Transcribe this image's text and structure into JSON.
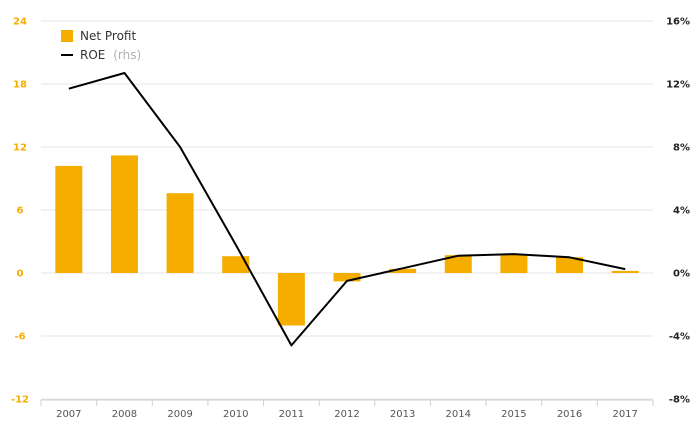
{
  "chart_data": {
    "type": "bar",
    "categories": [
      "2007",
      "2008",
      "2009",
      "2010",
      "2011",
      "2012",
      "2013",
      "2014",
      "2015",
      "2016",
      "2017"
    ],
    "series": [
      {
        "name": "Net Profit",
        "kind": "bar",
        "axis": "left",
        "values": [
          10.2,
          11.2,
          7.6,
          1.6,
          -5.0,
          -0.8,
          0.4,
          1.7,
          1.8,
          1.5,
          0.2
        ]
      },
      {
        "name": "ROE",
        "name_suffix": "(rhs)",
        "kind": "line",
        "axis": "right",
        "values": [
          11.7,
          12.7,
          8.0,
          1.8,
          -4.6,
          -0.5,
          0.3,
          1.1,
          1.2,
          1.0,
          0.25
        ]
      }
    ],
    "y_left": {
      "ylim": [
        -12,
        24
      ],
      "ticks": [
        "24",
        "18",
        "12",
        "6",
        "0",
        "-6",
        "-12"
      ]
    },
    "y_right": {
      "ylim": [
        -8,
        16
      ],
      "ticks": [
        "16%",
        "12%",
        "8%",
        "4%",
        "0%",
        "-4%",
        "-8%"
      ]
    },
    "grid": true,
    "legend_position": "top-left",
    "colors": {
      "bar": "#f5ad00",
      "line": "#000000",
      "left_ticks": "#f5ad00",
      "right_ticks": "#222222",
      "grid": "#e6e6e6"
    }
  }
}
